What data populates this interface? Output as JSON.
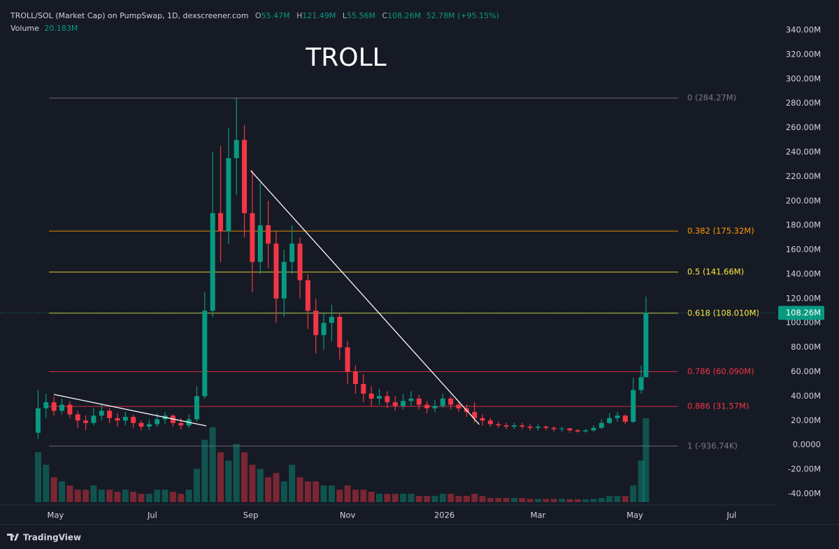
{
  "chart_data": {
    "type": "candlestick",
    "title": "TROLL",
    "legend": {
      "symbol": "TROLL/SOL (Market Cap) on PumpSwap, 1D, dexscreener.com",
      "fields": [
        {
          "key": "O",
          "value": 55.47,
          "label": "55.47M"
        },
        {
          "key": "H",
          "value": 121.49,
          "label": "121.49M"
        },
        {
          "key": "L",
          "value": 55.56,
          "label": "55.56M"
        },
        {
          "key": "C",
          "value": 108.26,
          "label": "108.26M"
        }
      ],
      "change": {
        "value": 52.78,
        "percent": 95.15,
        "label": "52.78M (+95.15%)"
      },
      "volume_name": "Volume",
      "volume": {
        "value": 20.183,
        "label": "20.183M"
      }
    },
    "brand": "TradingView",
    "up_color": "#089981",
    "down_color": "#f23645",
    "x": [
      0,
      5,
      10,
      15,
      20,
      25,
      30,
      35,
      40,
      45,
      50,
      55,
      60,
      65,
      70,
      75,
      80,
      85,
      90,
      95,
      100,
      105,
      110,
      115,
      120,
      125,
      130,
      135,
      140,
      145,
      150,
      155,
      160,
      165,
      170,
      175,
      180,
      185,
      190,
      195,
      200,
      205,
      210,
      215,
      220,
      225,
      230,
      235,
      240,
      245,
      250,
      255,
      260,
      265,
      270,
      275,
      280,
      285,
      290,
      295,
      300,
      305,
      310,
      315,
      320,
      325,
      330,
      335,
      340,
      345,
      350,
      355,
      360,
      365,
      370,
      375,
      380,
      383
    ],
    "open": [
      10,
      30,
      35,
      28,
      33,
      25,
      20,
      18,
      24,
      28,
      22,
      20,
      23,
      18,
      15,
      17,
      21,
      24,
      18,
      16,
      21,
      40,
      110,
      190,
      175,
      235,
      250,
      190,
      150,
      180,
      165,
      120,
      150,
      165,
      135,
      110,
      90,
      100,
      105,
      80,
      60,
      50,
      42,
      38,
      40,
      35,
      32,
      36,
      38,
      33,
      30,
      32,
      38,
      33,
      30,
      27,
      22,
      20,
      17,
      16,
      15,
      16,
      15,
      14,
      15,
      14,
      13,
      13.5,
      12,
      11,
      12,
      14,
      18,
      22,
      24,
      19,
      45,
      55.47
    ],
    "high": [
      45,
      42,
      40,
      38,
      36,
      28,
      24,
      30,
      33,
      30,
      26,
      27,
      25,
      20,
      21,
      26,
      27,
      25,
      22,
      25,
      48,
      125,
      240,
      245,
      260,
      284.27,
      262,
      225,
      215,
      200,
      175,
      160,
      180,
      170,
      140,
      120,
      108,
      115,
      108,
      85,
      65,
      58,
      48,
      46,
      44,
      40,
      42,
      44,
      41,
      36,
      37,
      42,
      40,
      36,
      33,
      35,
      25,
      22,
      19,
      18,
      18,
      18,
      17,
      17,
      16,
      15,
      15,
      14,
      13,
      13,
      16,
      21,
      26,
      27,
      25,
      55,
      65,
      121.49
    ],
    "low": [
      5,
      22,
      24,
      25,
      22,
      14,
      12,
      16,
      20,
      18,
      15,
      16,
      14,
      12,
      12,
      15,
      17,
      15,
      13,
      14,
      19,
      38,
      105,
      150,
      165,
      205,
      170,
      125,
      140,
      145,
      100,
      105,
      140,
      120,
      95,
      75,
      78,
      85,
      70,
      50,
      42,
      35,
      32,
      33,
      30,
      28,
      29,
      32,
      29,
      26,
      27,
      30,
      29,
      27,
      23,
      18,
      16,
      15,
      14,
      13,
      13,
      13,
      12,
      12,
      12,
      11,
      11,
      10,
      10,
      10,
      11,
      13,
      17,
      19,
      17,
      18,
      42,
      55.56
    ],
    "close": [
      30,
      35,
      28,
      33,
      25,
      20,
      18,
      24,
      28,
      22,
      20,
      23,
      18,
      15,
      17,
      21,
      24,
      18,
      16,
      21,
      40,
      110,
      190,
      175,
      235,
      250,
      190,
      150,
      180,
      165,
      120,
      150,
      165,
      135,
      110,
      90,
      100,
      105,
      80,
      60,
      50,
      42,
      38,
      40,
      35,
      32,
      36,
      38,
      33,
      30,
      32,
      38,
      33,
      30,
      27,
      22,
      20,
      17,
      16,
      15,
      16,
      15,
      14,
      15,
      14,
      13,
      13.5,
      12,
      11,
      12,
      14,
      18,
      22,
      24,
      19,
      45,
      55.47,
      108.26
    ],
    "volume": [
      12,
      9,
      6,
      5,
      4,
      3,
      3,
      4,
      3,
      3,
      2.5,
      3,
      2.5,
      2,
      2,
      3,
      3,
      2.5,
      2,
      3,
      8,
      15,
      18,
      12,
      10,
      14,
      12,
      9,
      8,
      6,
      7,
      5,
      9,
      6,
      5,
      5,
      4,
      4,
      3,
      4,
      3,
      3,
      2.5,
      2,
      2,
      2,
      2,
      2,
      1.5,
      1.5,
      1.5,
      2,
      2,
      1.5,
      1.5,
      2,
      1.5,
      1,
      1,
      1,
      1,
      1,
      0.8,
      0.8,
      0.8,
      0.8,
      0.8,
      0.7,
      0.7,
      0.7,
      0.8,
      1,
      1.5,
      1.5,
      1.5,
      4,
      10,
      20.183
    ],
    "xlim": [
      -24,
      465
    ],
    "xticks": [
      {
        "value": 11,
        "label": "May"
      },
      {
        "value": 72,
        "label": "Jul"
      },
      {
        "value": 134,
        "label": "Sep"
      },
      {
        "value": 195,
        "label": "Nov"
      },
      {
        "value": 256,
        "label": "2026"
      },
      {
        "value": 315,
        "label": "Mar"
      },
      {
        "value": 376,
        "label": "May"
      },
      {
        "value": 437,
        "label": "Jul"
      }
    ],
    "ylim": [
      -40,
      340
    ],
    "yticks": [
      {
        "value": 340,
        "label": "340.00M"
      },
      {
        "value": 320,
        "label": "320.00M"
      },
      {
        "value": 300,
        "label": "300.00M"
      },
      {
        "value": 280,
        "label": "280.00M"
      },
      {
        "value": 260,
        "label": "260.00M"
      },
      {
        "value": 240,
        "label": "240.00M"
      },
      {
        "value": 220,
        "label": "220.00M"
      },
      {
        "value": 200,
        "label": "200.00M"
      },
      {
        "value": 180,
        "label": "180.00M"
      },
      {
        "value": 160,
        "label": "160.00M"
      },
      {
        "value": 140,
        "label": "140.00M"
      },
      {
        "value": 120,
        "label": "120.00M"
      },
      {
        "value": 100,
        "label": "100.00M"
      },
      {
        "value": 80,
        "label": "80.00M"
      },
      {
        "value": 60,
        "label": "60.00M"
      },
      {
        "value": 40,
        "label": "40.00M"
      },
      {
        "value": 20,
        "label": "20.00M"
      },
      {
        "value": 0,
        "label": "0.0000"
      },
      {
        "value": -20,
        "label": "-20.00M"
      },
      {
        "value": -40,
        "label": "-40.00M"
      }
    ],
    "grid": false,
    "fib_levels": [
      {
        "value": 284.27,
        "label": "0 (284.27M)",
        "color": "#787b86"
      },
      {
        "value": 175.32,
        "label": "0.382 (175.32M)",
        "color": "#ff9800"
      },
      {
        "value": 141.66,
        "label": "0.5 (141.66M)",
        "color": "#ffeb3b"
      },
      {
        "value": 108.01,
        "label": "0.618 (108.010M)",
        "color": "#ffeb3b"
      },
      {
        "value": 60.09,
        "label": "0.786 (60.090M)",
        "color": "#f23645"
      },
      {
        "value": 31.57,
        "label": "0.886 (31.57M)",
        "color": "#f23645"
      },
      {
        "value": -0.93674,
        "label": "1 (-936.74K)",
        "color": "#787b86"
      }
    ],
    "trendlines": [
      {
        "x": [
          10,
          106
        ],
        "y": [
          41.4,
          15.6
        ]
      },
      {
        "x": [
          134,
          278
        ],
        "y": [
          224.8,
          16.8
        ]
      }
    ],
    "last_price": {
      "value": 108.26,
      "label": "108.26M",
      "color": "#089981"
    }
  }
}
